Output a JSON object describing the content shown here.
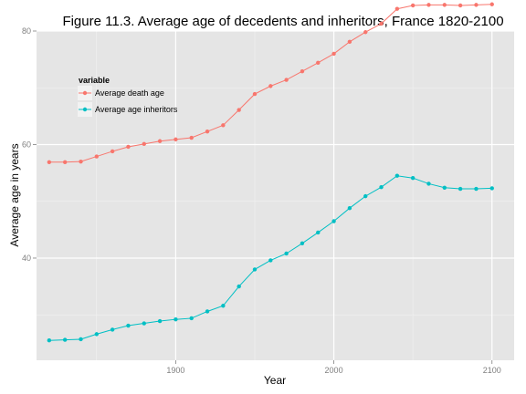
{
  "chart_data": {
    "type": "line",
    "title": "Figure 11.3. Average age of decedents and inheritors, France 1820-2100",
    "xlabel": "Year",
    "ylabel": "Average age in years",
    "xlim": [
      1812,
      2114
    ],
    "ylim": [
      22,
      80
    ],
    "x_ticks": [
      1900,
      2000,
      2100
    ],
    "y_ticks": [
      40,
      60,
      80
    ],
    "grid": true,
    "legend": {
      "title": "variable",
      "position": "top-left-inside"
    },
    "x": [
      1820,
      1830,
      1840,
      1850,
      1860,
      1870,
      1880,
      1890,
      1900,
      1910,
      1920,
      1930,
      1940,
      1950,
      1960,
      1970,
      1980,
      1990,
      2000,
      2010,
      2020,
      2030,
      2040,
      2050,
      2060,
      2070,
      2080,
      2090,
      2100
    ],
    "series": [
      {
        "name": "Average death age",
        "color": "#F8766D",
        "values": [
          56.9,
          56.9,
          57.0,
          57.9,
          58.8,
          59.6,
          60.1,
          60.6,
          60.9,
          61.2,
          62.3,
          63.4,
          66.1,
          68.9,
          70.3,
          71.4,
          72.9,
          74.4,
          76.0,
          78.1,
          79.8,
          81.3,
          83.9,
          84.5,
          84.6,
          84.6,
          84.5,
          84.6,
          84.7
        ]
      },
      {
        "name": "Average age inheritors",
        "color": "#00BFC4",
        "values": [
          25.5,
          25.6,
          25.7,
          26.6,
          27.4,
          28.1,
          28.5,
          28.9,
          29.2,
          29.4,
          30.6,
          31.6,
          35.0,
          38.0,
          39.6,
          40.8,
          42.6,
          44.5,
          46.5,
          48.8,
          50.9,
          52.5,
          54.5,
          54.1,
          53.1,
          52.4,
          52.2,
          52.2,
          52.3
        ]
      }
    ]
  }
}
